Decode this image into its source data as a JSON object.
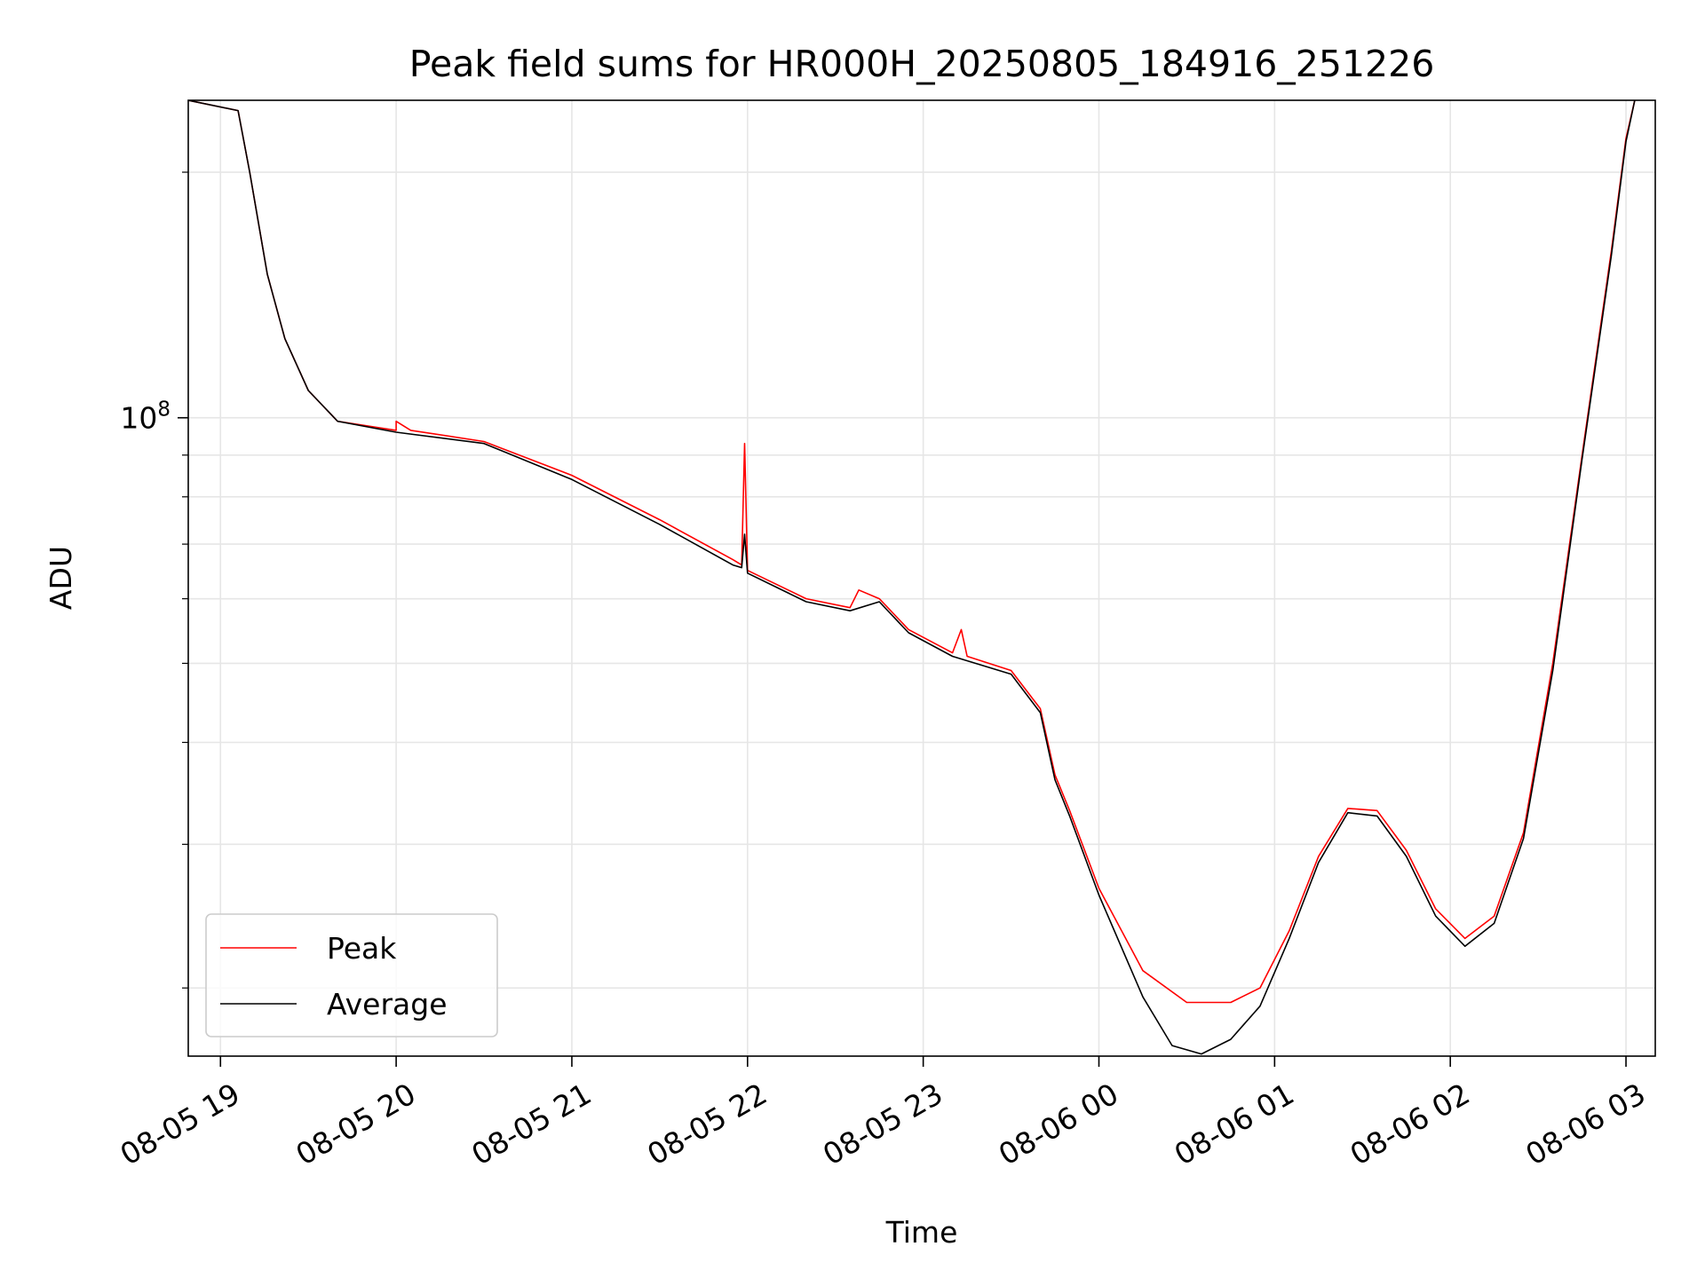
{
  "chart_data": {
    "type": "line",
    "title": "Peak field sums for HR000H_20250805_184916_251226",
    "xlabel": "Time",
    "ylabel": "ADU",
    "yscale": "log",
    "grid": true,
    "legend_position": "lower-left",
    "xlim": [
      "2025-08-05 18:49",
      "2025-08-06 03:10"
    ],
    "ylim": [
      16500000,
      245000000
    ],
    "x_ticks": [
      {
        "t": "2025-08-05 19:00",
        "label": "08-05 19"
      },
      {
        "t": "2025-08-05 20:00",
        "label": "08-05 20"
      },
      {
        "t": "2025-08-05 21:00",
        "label": "08-05 21"
      },
      {
        "t": "2025-08-05 22:00",
        "label": "08-05 22"
      },
      {
        "t": "2025-08-05 23:00",
        "label": "08-05 23"
      },
      {
        "t": "2025-08-06 00:00",
        "label": "08-06 00"
      },
      {
        "t": "2025-08-06 01:00",
        "label": "08-06 01"
      },
      {
        "t": "2025-08-06 02:00",
        "label": "08-06 02"
      },
      {
        "t": "2025-08-06 03:00",
        "label": "08-06 03"
      }
    ],
    "y_ticks": [
      {
        "value": 100000000,
        "base": "10",
        "exp": "8"
      }
    ],
    "y_minor_ticks": [
      20000000,
      30000000,
      40000000,
      50000000,
      60000000,
      70000000,
      80000000,
      90000000,
      200000000
    ],
    "series": [
      {
        "name": "Peak",
        "color": "#ff0000",
        "points": [
          [
            "2025-08-05 18:49",
            245000000
          ],
          [
            "2025-08-05 19:06",
            238000000
          ],
          [
            "2025-08-05 19:10",
            200000000
          ],
          [
            "2025-08-05 19:16",
            150000000
          ],
          [
            "2025-08-05 19:22",
            125000000
          ],
          [
            "2025-08-05 19:30",
            108000000
          ],
          [
            "2025-08-05 19:40",
            99000000
          ],
          [
            "2025-08-05 20:00",
            96500000
          ],
          [
            "2025-08-05 20:00",
            99000000
          ],
          [
            "2025-08-05 20:05",
            96500000
          ],
          [
            "2025-08-05 20:30",
            93500000
          ],
          [
            "2025-08-05 21:00",
            85000000
          ],
          [
            "2025-08-05 21:30",
            75000000
          ],
          [
            "2025-08-05 21:55",
            67000000
          ],
          [
            "2025-08-05 21:58",
            66000000
          ],
          [
            "2025-08-05 21:59",
            93000000
          ],
          [
            "2025-08-05 22:00",
            65000000
          ],
          [
            "2025-08-05 22:20",
            60000000
          ],
          [
            "2025-08-05 22:35",
            58500000
          ],
          [
            "2025-08-05 22:38",
            61500000
          ],
          [
            "2025-08-05 22:45",
            60000000
          ],
          [
            "2025-08-05 22:55",
            55000000
          ],
          [
            "2025-08-05 23:10",
            51500000
          ],
          [
            "2025-08-05 23:13",
            55000000
          ],
          [
            "2025-08-05 23:15",
            51000000
          ],
          [
            "2025-08-05 23:30",
            49000000
          ],
          [
            "2025-08-05 23:40",
            44000000
          ],
          [
            "2025-08-05 23:45",
            36500000
          ],
          [
            "2025-08-05 23:50",
            33000000
          ],
          [
            "2025-08-06 00:00",
            26500000
          ],
          [
            "2025-08-06 00:15",
            21000000
          ],
          [
            "2025-08-06 00:30",
            19200000
          ],
          [
            "2025-08-06 00:45",
            19200000
          ],
          [
            "2025-08-06 00:55",
            20000000
          ],
          [
            "2025-08-06 01:05",
            23500000
          ],
          [
            "2025-08-06 01:15",
            29000000
          ],
          [
            "2025-08-06 01:25",
            33200000
          ],
          [
            "2025-08-06 01:35",
            33000000
          ],
          [
            "2025-08-06 01:45",
            29500000
          ],
          [
            "2025-08-06 01:55",
            25000000
          ],
          [
            "2025-08-06 02:05",
            23000000
          ],
          [
            "2025-08-06 02:15",
            24500000
          ],
          [
            "2025-08-06 02:25",
            31000000
          ],
          [
            "2025-08-06 02:35",
            50000000
          ],
          [
            "2025-08-06 02:45",
            90000000
          ],
          [
            "2025-08-06 02:55",
            160000000
          ],
          [
            "2025-08-06 03:00",
            220000000
          ],
          [
            "2025-08-06 03:03",
            245000000
          ]
        ]
      },
      {
        "name": "Average",
        "color": "#000000",
        "points": [
          [
            "2025-08-05 18:49",
            245000000
          ],
          [
            "2025-08-05 19:06",
            238000000
          ],
          [
            "2025-08-05 19:10",
            200000000
          ],
          [
            "2025-08-05 19:16",
            150000000
          ],
          [
            "2025-08-05 19:22",
            125000000
          ],
          [
            "2025-08-05 19:30",
            108000000
          ],
          [
            "2025-08-05 19:40",
            99000000
          ],
          [
            "2025-08-05 20:00",
            96000000
          ],
          [
            "2025-08-05 20:30",
            93000000
          ],
          [
            "2025-08-05 21:00",
            84000000
          ],
          [
            "2025-08-05 21:30",
            74000000
          ],
          [
            "2025-08-05 21:55",
            66000000
          ],
          [
            "2025-08-05 21:58",
            65500000
          ],
          [
            "2025-08-05 21:59",
            72000000
          ],
          [
            "2025-08-05 22:00",
            64500000
          ],
          [
            "2025-08-05 22:20",
            59500000
          ],
          [
            "2025-08-05 22:35",
            58000000
          ],
          [
            "2025-08-05 22:45",
            59500000
          ],
          [
            "2025-08-05 22:55",
            54500000
          ],
          [
            "2025-08-05 23:10",
            51000000
          ],
          [
            "2025-08-05 23:30",
            48500000
          ],
          [
            "2025-08-05 23:40",
            43500000
          ],
          [
            "2025-08-05 23:45",
            36000000
          ],
          [
            "2025-08-05 23:50",
            32500000
          ],
          [
            "2025-08-06 00:00",
            26000000
          ],
          [
            "2025-08-06 00:15",
            19500000
          ],
          [
            "2025-08-06 00:25",
            17000000
          ],
          [
            "2025-08-06 00:35",
            16600000
          ],
          [
            "2025-08-06 00:45",
            17300000
          ],
          [
            "2025-08-06 00:55",
            19000000
          ],
          [
            "2025-08-06 01:05",
            23000000
          ],
          [
            "2025-08-06 01:15",
            28500000
          ],
          [
            "2025-08-06 01:25",
            32800000
          ],
          [
            "2025-08-06 01:35",
            32500000
          ],
          [
            "2025-08-06 01:45",
            29000000
          ],
          [
            "2025-08-06 01:55",
            24500000
          ],
          [
            "2025-08-06 02:05",
            22500000
          ],
          [
            "2025-08-06 02:15",
            24000000
          ],
          [
            "2025-08-06 02:25",
            30500000
          ],
          [
            "2025-08-06 02:35",
            49000000
          ],
          [
            "2025-08-06 02:45",
            89000000
          ],
          [
            "2025-08-06 02:55",
            158000000
          ],
          [
            "2025-08-06 03:00",
            218000000
          ],
          [
            "2025-08-06 03:03",
            245000000
          ]
        ]
      }
    ]
  }
}
